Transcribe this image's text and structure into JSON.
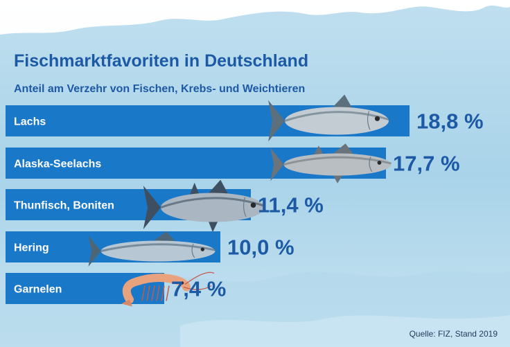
{
  "title": "Fischmarktfavoriten in Deutschland",
  "subtitle": "Anteil am Verzehr von Fischen, Krebs- und Weichtieren",
  "source": "Quelle: FIZ, Stand 2019",
  "colors": {
    "bar": "#1a78c8",
    "text": "#1d5aa6",
    "water_light": "#cfe6f2",
    "water_mid": "#a8d2e8"
  },
  "chart_data": {
    "type": "bar",
    "orientation": "horizontal",
    "categories": [
      "Lachs",
      "Alaska-Seelachs",
      "Thunfisch, Boniten",
      "Hering",
      "Garnelen"
    ],
    "values": [
      18.8,
      17.7,
      11.4,
      10.0,
      7.4
    ],
    "value_labels": [
      "18,8 %",
      "17,7 %",
      "11,4 %",
      "10,0 %",
      "7,4 %"
    ],
    "icons": [
      "salmon-icon",
      "pollock-icon",
      "tuna-icon",
      "herring-icon",
      "shrimp-icon"
    ],
    "unit": "%"
  }
}
